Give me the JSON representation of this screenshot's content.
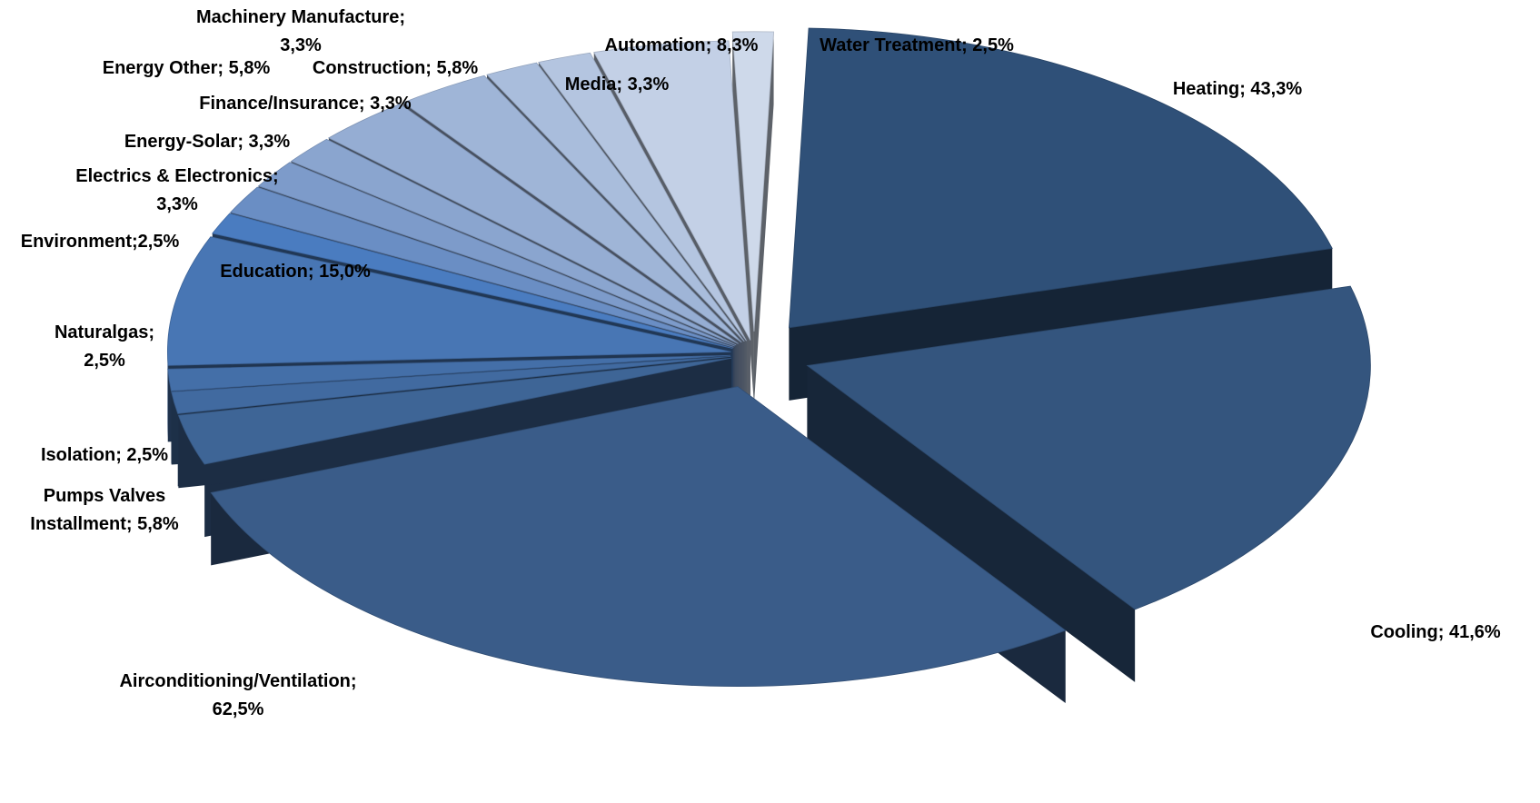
{
  "chart_data": {
    "type": "pie",
    "style": "3d exploded pie",
    "title": "",
    "slices": [
      {
        "category": "Heating",
        "value": 43.3,
        "label_lines": [
          "Heating; 43,3%"
        ],
        "color": "#2f5078"
      },
      {
        "category": "Cooling",
        "value": 41.6,
        "label_lines": [
          "Cooling; 41,6%"
        ],
        "color": "#34557e"
      },
      {
        "category": "Airconditioning/Ventilation",
        "value": 62.5,
        "label_lines": [
          "Airconditioning/Ventilation;",
          "62,5%"
        ],
        "color": "#3a5c89"
      },
      {
        "category": "Pumps Valves Installment",
        "value": 5.8,
        "label_lines": [
          "Pumps Valves",
          "Installment; 5,8%"
        ],
        "color": "#3e6596"
      },
      {
        "category": "Isolation",
        "value": 2.5,
        "label_lines": [
          "Isolation; 2,5%"
        ],
        "color": "#416aa0"
      },
      {
        "category": "Naturalgas",
        "value": 2.5,
        "label_lines": [
          "Naturalgas;",
          "2,5%"
        ],
        "color": "#446fa8"
      },
      {
        "category": "Education",
        "value": 15.0,
        "label_lines": [
          "Education; 15,0%"
        ],
        "color": "#4876b4"
      },
      {
        "category": "Environment",
        "value": 2.5,
        "label_lines": [
          "Environment;2,5%"
        ],
        "color": "#4a7cc0"
      },
      {
        "category": "Electrics & Electronics",
        "value": 3.3,
        "label_lines": [
          "Electrics & Electronics;",
          "3,3%"
        ],
        "color": "#6a8ec4"
      },
      {
        "category": "Energy-Solar",
        "value": 3.3,
        "label_lines": [
          "Energy-Solar; 3,3%"
        ],
        "color": "#7d9bca"
      },
      {
        "category": "Finance/Insurance",
        "value": 3.3,
        "label_lines": [
          "Finance/Insurance; 3,3%"
        ],
        "color": "#8aa5cf"
      },
      {
        "category": "Construction",
        "value": 5.8,
        "label_lines": [
          "Construction; 5,8%"
        ],
        "color": "#95add3"
      },
      {
        "category": "Energy Other",
        "value": 5.8,
        "label_lines": [
          "Energy Other; 5,8%"
        ],
        "color": "#9fb5d7"
      },
      {
        "category": "Machinery Manufacture",
        "value": 3.3,
        "label_lines": [
          "Machinery Manufacture;",
          "3,3%"
        ],
        "color": "#a9bddc"
      },
      {
        "category": "Media",
        "value": 3.3,
        "label_lines": [
          "Media; 3,3%"
        ],
        "color": "#b4c5e0"
      },
      {
        "category": "Automation",
        "value": 8.3,
        "label_lines": [
          "Automation; 8,3%"
        ],
        "color": "#c3d0e6"
      },
      {
        "category": "Water Treatment",
        "value": 2.5,
        "label_lines": [
          "Water Treatment; 2,5%"
        ],
        "color": "#ced9ea"
      }
    ]
  }
}
